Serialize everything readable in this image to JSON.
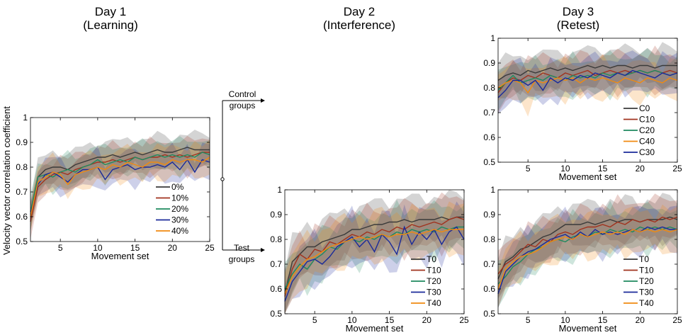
{
  "columns": [
    {
      "day": "Day 1",
      "phase": "(Learning)"
    },
    {
      "day": "Day 2",
      "phase": "(Interference)"
    },
    {
      "day": "Day 3",
      "phase": "(Retest)"
    }
  ],
  "ylabel": "Velocity vector correlation coefficient",
  "flow_labels": {
    "control": [
      "Control",
      "groups"
    ],
    "test": [
      "Test",
      "groups"
    ]
  },
  "colors": {
    "g0": "#3a3a3a",
    "g10": "#a0321e",
    "g20": "#1e8a5e",
    "g30": "#1a2a9a",
    "g40": "#f08a10"
  },
  "chart_data": [
    {
      "id": "day1",
      "type": "line",
      "title": "Day 1 (Learning)",
      "xlabel": "Movement set",
      "ylabel": "Velocity vector correlation coefficient",
      "xlim": [
        1,
        25
      ],
      "ylim": [
        0.5,
        1
      ],
      "xticks": [
        5,
        10,
        15,
        20,
        25
      ],
      "yticks": [
        0.5,
        0.6,
        0.7,
        0.8,
        0.9,
        1
      ],
      "band_halfwidth": 0.06,
      "legend_position": "bottom-right",
      "series": [
        {
          "name": "0%",
          "color": "#3a3a3a",
          "values": [
            0.6,
            0.76,
            0.79,
            0.8,
            0.8,
            0.79,
            0.81,
            0.82,
            0.83,
            0.84,
            0.84,
            0.85,
            0.84,
            0.85,
            0.86,
            0.85,
            0.86,
            0.87,
            0.86,
            0.86,
            0.87,
            0.88,
            0.87,
            0.87,
            0.87
          ]
        },
        {
          "name": "10%",
          "color": "#a0321e",
          "values": [
            0.58,
            0.72,
            0.75,
            0.77,
            0.78,
            0.77,
            0.79,
            0.8,
            0.81,
            0.82,
            0.82,
            0.83,
            0.82,
            0.83,
            0.84,
            0.83,
            0.84,
            0.84,
            0.85,
            0.84,
            0.85,
            0.84,
            0.85,
            0.86,
            0.86
          ]
        },
        {
          "name": "20%",
          "color": "#1e8a5e",
          "values": [
            0.62,
            0.76,
            0.77,
            0.76,
            0.78,
            0.79,
            0.78,
            0.8,
            0.81,
            0.83,
            0.81,
            0.82,
            0.83,
            0.82,
            0.84,
            0.83,
            0.84,
            0.85,
            0.84,
            0.85,
            0.84,
            0.85,
            0.84,
            0.86,
            0.85
          ]
        },
        {
          "name": "30%",
          "color": "#1a2a9a",
          "values": [
            0.61,
            0.73,
            0.77,
            0.78,
            0.76,
            0.74,
            0.77,
            0.79,
            0.79,
            0.8,
            0.75,
            0.79,
            0.8,
            0.81,
            0.79,
            0.8,
            0.8,
            0.81,
            0.8,
            0.82,
            0.79,
            0.83,
            0.78,
            0.83,
            0.82
          ]
        },
        {
          "name": "40%",
          "color": "#f08a10",
          "values": [
            0.6,
            0.74,
            0.76,
            0.78,
            0.77,
            0.73,
            0.77,
            0.78,
            0.79,
            0.8,
            0.79,
            0.81,
            0.8,
            0.82,
            0.81,
            0.8,
            0.82,
            0.82,
            0.81,
            0.83,
            0.82,
            0.83,
            0.83,
            0.82,
            0.84
          ]
        }
      ]
    },
    {
      "id": "day2",
      "type": "line",
      "title": "Day 2 (Interference)",
      "xlabel": "Movement set",
      "ylabel": "",
      "xlim": [
        1,
        25
      ],
      "ylim": [
        0.5,
        1
      ],
      "xticks": [
        5,
        10,
        15,
        20,
        25
      ],
      "yticks": [
        0.5,
        0.6,
        0.7,
        0.8,
        0.9,
        1
      ],
      "band_halfwidth": 0.09,
      "legend_position": "bottom-right",
      "series": [
        {
          "name": "T0",
          "color": "#3a3a3a",
          "values": [
            0.58,
            0.71,
            0.74,
            0.77,
            0.77,
            0.79,
            0.8,
            0.81,
            0.82,
            0.84,
            0.84,
            0.85,
            0.86,
            0.86,
            0.87,
            0.87,
            0.88,
            0.87,
            0.88,
            0.88,
            0.88,
            0.89,
            0.88,
            0.89,
            0.89
          ]
        },
        {
          "name": "T10",
          "color": "#a0321e",
          "values": [
            0.57,
            0.68,
            0.74,
            0.72,
            0.76,
            0.75,
            0.79,
            0.78,
            0.8,
            0.82,
            0.81,
            0.83,
            0.82,
            0.84,
            0.83,
            0.85,
            0.84,
            0.86,
            0.85,
            0.86,
            0.87,
            0.86,
            0.88,
            0.89,
            0.88
          ]
        },
        {
          "name": "T20",
          "color": "#1e8a5e",
          "values": [
            0.6,
            0.66,
            0.7,
            0.68,
            0.72,
            0.74,
            0.77,
            0.76,
            0.79,
            0.8,
            0.79,
            0.81,
            0.8,
            0.82,
            0.81,
            0.83,
            0.82,
            0.84,
            0.83,
            0.84,
            0.83,
            0.85,
            0.84,
            0.85,
            0.85
          ]
        },
        {
          "name": "T30",
          "color": "#1a2a9a",
          "values": [
            0.55,
            0.63,
            0.67,
            0.71,
            0.72,
            0.7,
            0.73,
            0.77,
            0.79,
            0.81,
            0.77,
            0.8,
            0.75,
            0.82,
            0.79,
            0.74,
            0.85,
            0.78,
            0.83,
            0.8,
            0.84,
            0.78,
            0.83,
            0.85,
            0.8
          ]
        },
        {
          "name": "T40",
          "color": "#f08a10",
          "values": [
            0.58,
            0.65,
            0.69,
            0.72,
            0.73,
            0.75,
            0.77,
            0.78,
            0.79,
            0.8,
            0.81,
            0.8,
            0.81,
            0.82,
            0.81,
            0.82,
            0.82,
            0.83,
            0.82,
            0.83,
            0.84,
            0.83,
            0.84,
            0.84,
            0.84
          ]
        }
      ]
    },
    {
      "id": "day3-control",
      "type": "line",
      "title": "Day 3 (Retest)",
      "xlabel": "Movement set",
      "ylabel": "",
      "xlim": [
        1,
        25
      ],
      "ylim": [
        0.5,
        1
      ],
      "xticks": [
        5,
        10,
        15,
        20,
        25
      ],
      "yticks": [
        0.5,
        0.6,
        0.7,
        0.8,
        0.9,
        1
      ],
      "band_halfwidth": 0.07,
      "legend_position": "bottom-right",
      "series": [
        {
          "name": "C0",
          "color": "#3a3a3a",
          "values": [
            0.83,
            0.85,
            0.86,
            0.85,
            0.87,
            0.86,
            0.87,
            0.88,
            0.87,
            0.88,
            0.87,
            0.88,
            0.89,
            0.88,
            0.89,
            0.88,
            0.89,
            0.89,
            0.88,
            0.89,
            0.89,
            0.88,
            0.89,
            0.89,
            0.89
          ]
        },
        {
          "name": "C10",
          "color": "#a0321e",
          "values": [
            0.78,
            0.82,
            0.84,
            0.83,
            0.85,
            0.84,
            0.86,
            0.85,
            0.84,
            0.86,
            0.85,
            0.86,
            0.87,
            0.85,
            0.86,
            0.87,
            0.86,
            0.87,
            0.86,
            0.87,
            0.86,
            0.87,
            0.86,
            0.87,
            0.86
          ]
        },
        {
          "name": "C20",
          "color": "#1e8a5e",
          "values": [
            0.79,
            0.82,
            0.85,
            0.82,
            0.83,
            0.84,
            0.83,
            0.85,
            0.84,
            0.83,
            0.85,
            0.84,
            0.85,
            0.84,
            0.86,
            0.85,
            0.86,
            0.85,
            0.86,
            0.87,
            0.86,
            0.87,
            0.86,
            0.85,
            0.86
          ]
        },
        {
          "name": "C40",
          "color": "#f08a10",
          "values": [
            0.8,
            0.82,
            0.83,
            0.82,
            0.78,
            0.83,
            0.82,
            0.83,
            0.84,
            0.83,
            0.84,
            0.82,
            0.84,
            0.83,
            0.84,
            0.83,
            0.82,
            0.84,
            0.83,
            0.82,
            0.84,
            0.83,
            0.82,
            0.84,
            0.83
          ]
        },
        {
          "name": "C30",
          "color": "#1a2a9a",
          "values": [
            0.76,
            0.79,
            0.83,
            0.83,
            0.81,
            0.83,
            0.79,
            0.84,
            0.82,
            0.84,
            0.83,
            0.85,
            0.84,
            0.86,
            0.85,
            0.84,
            0.86,
            0.85,
            0.87,
            0.86,
            0.85,
            0.84,
            0.86,
            0.85,
            0.86
          ]
        }
      ]
    },
    {
      "id": "day3-test",
      "type": "line",
      "title": "",
      "xlabel": "Movement set",
      "ylabel": "",
      "xlim": [
        1,
        25
      ],
      "ylim": [
        0.5,
        1
      ],
      "xticks": [
        5,
        10,
        15,
        20,
        25
      ],
      "yticks": [
        0.5,
        0.6,
        0.7,
        0.8,
        0.9,
        1
      ],
      "band_halfwidth": 0.08,
      "legend_position": "bottom-right",
      "series": [
        {
          "name": "T0",
          "color": "#3a3a3a",
          "values": [
            0.64,
            0.71,
            0.73,
            0.76,
            0.77,
            0.79,
            0.81,
            0.82,
            0.84,
            0.86,
            0.86,
            0.86,
            0.87,
            0.86,
            0.87,
            0.88,
            0.87,
            0.88,
            0.88,
            0.87,
            0.88,
            0.88,
            0.88,
            0.89,
            0.88
          ]
        },
        {
          "name": "T10",
          "color": "#a0321e",
          "values": [
            0.66,
            0.7,
            0.72,
            0.75,
            0.78,
            0.77,
            0.8,
            0.79,
            0.82,
            0.83,
            0.82,
            0.84,
            0.85,
            0.85,
            0.86,
            0.85,
            0.87,
            0.86,
            0.88,
            0.87,
            0.88,
            0.87,
            0.89,
            0.88,
            0.89
          ]
        },
        {
          "name": "T20",
          "color": "#1e8a5e",
          "values": [
            0.62,
            0.65,
            0.69,
            0.71,
            0.74,
            0.76,
            0.77,
            0.79,
            0.8,
            0.79,
            0.81,
            0.82,
            0.81,
            0.83,
            0.82,
            0.84,
            0.83,
            0.84,
            0.83,
            0.85,
            0.84,
            0.85,
            0.84,
            0.85,
            0.84
          ]
        },
        {
          "name": "T30",
          "color": "#1a2a9a",
          "values": [
            0.58,
            0.67,
            0.7,
            0.73,
            0.75,
            0.76,
            0.78,
            0.8,
            0.81,
            0.82,
            0.8,
            0.83,
            0.81,
            0.84,
            0.82,
            0.83,
            0.82,
            0.83,
            0.84,
            0.83,
            0.85,
            0.84,
            0.85,
            0.84,
            0.84
          ]
        },
        {
          "name": "T40",
          "color": "#f08a10",
          "values": [
            0.6,
            0.68,
            0.71,
            0.73,
            0.74,
            0.75,
            0.77,
            0.79,
            0.8,
            0.81,
            0.8,
            0.82,
            0.81,
            0.82,
            0.83,
            0.82,
            0.83,
            0.82,
            0.84,
            0.83,
            0.84,
            0.83,
            0.84,
            0.83,
            0.84
          ]
        }
      ]
    }
  ]
}
